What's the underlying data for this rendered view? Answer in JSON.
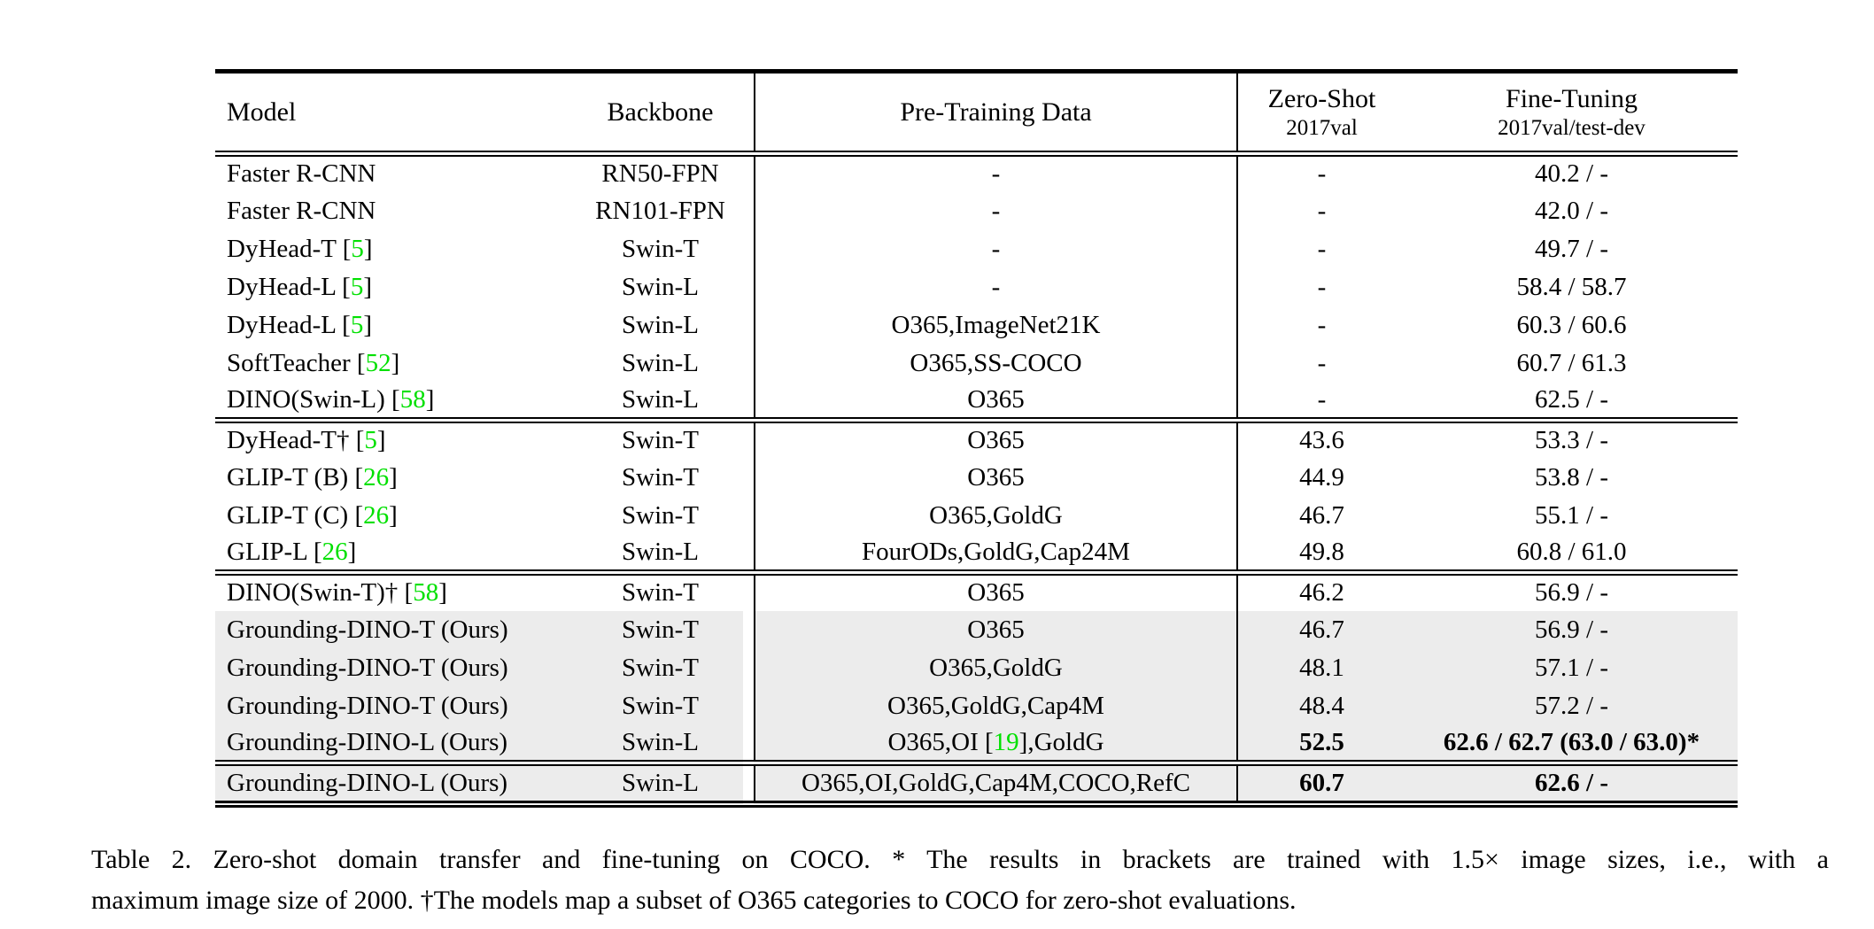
{
  "colors": {
    "green": "#00e000",
    "hl": "#ececec"
  },
  "table": {
    "columns": [
      {
        "label": "Model"
      },
      {
        "label": "Backbone"
      },
      {
        "label": "Pre-Training Data"
      },
      {
        "label": "Zero-Shot",
        "sublabel": "2017val"
      },
      {
        "label": "Fine-Tuning",
        "sublabel": "2017val/test-dev"
      }
    ],
    "sections": [
      {
        "rows": [
          {
            "model": "Faster R-CNN",
            "backbone": "RN50-FPN",
            "pretrain": "-",
            "zero_shot": "-",
            "fine_tuning": "40.2 / -",
            "highlight": false,
            "bold_values": false
          },
          {
            "model": "Faster R-CNN",
            "backbone": "RN101-FPN",
            "pretrain": "-",
            "zero_shot": "-",
            "fine_tuning": "42.0 / -",
            "highlight": false,
            "bold_values": false
          },
          {
            "model": "DyHead-T [5]",
            "backbone": "Swin-T",
            "pretrain": "-",
            "zero_shot": "-",
            "fine_tuning": "49.7 / -",
            "highlight": false,
            "bold_values": false
          },
          {
            "model": "DyHead-L [5]",
            "backbone": "Swin-L",
            "pretrain": "-",
            "zero_shot": "-",
            "fine_tuning": "58.4 / 58.7",
            "highlight": false,
            "bold_values": false
          },
          {
            "model": "DyHead-L [5]",
            "backbone": "Swin-L",
            "pretrain": "O365,ImageNet21K",
            "zero_shot": "-",
            "fine_tuning": "60.3 / 60.6",
            "highlight": false,
            "bold_values": false
          },
          {
            "model": "SoftTeacher [52]",
            "backbone": "Swin-L",
            "pretrain": "O365,SS-COCO",
            "zero_shot": "-",
            "fine_tuning": "60.7 / 61.3",
            "highlight": false,
            "bold_values": false
          },
          {
            "model": "DINO(Swin-L) [58]",
            "backbone": "Swin-L",
            "pretrain": "O365",
            "zero_shot": "-",
            "fine_tuning": "62.5 / -",
            "highlight": false,
            "bold_values": false
          }
        ]
      },
      {
        "rows": [
          {
            "model": "DyHead-T† [5]",
            "backbone": "Swin-T",
            "pretrain": "O365",
            "zero_shot": "43.6",
            "fine_tuning": "53.3 / -",
            "highlight": false,
            "bold_values": false
          },
          {
            "model": "GLIP-T (B) [26]",
            "backbone": "Swin-T",
            "pretrain": "O365",
            "zero_shot": "44.9",
            "fine_tuning": "53.8 / -",
            "highlight": false,
            "bold_values": false
          },
          {
            "model": "GLIP-T (C) [26]",
            "backbone": "Swin-T",
            "pretrain": "O365,GoldG",
            "zero_shot": "46.7",
            "fine_tuning": "55.1 / -",
            "highlight": false,
            "bold_values": false
          },
          {
            "model": "GLIP-L [26]",
            "backbone": "Swin-L",
            "pretrain": "FourODs,GoldG,Cap24M",
            "zero_shot": "49.8",
            "fine_tuning": "60.8 / 61.0",
            "highlight": false,
            "bold_values": false
          }
        ]
      },
      {
        "rows": [
          {
            "model": "DINO(Swin-T)† [58]",
            "backbone": "Swin-T",
            "pretrain": "O365",
            "zero_shot": "46.2",
            "fine_tuning": "56.9 / -",
            "highlight": false,
            "bold_values": false
          },
          {
            "model": "Grounding-DINO-T (Ours)",
            "backbone": "Swin-T",
            "pretrain": "O365",
            "zero_shot": "46.7",
            "fine_tuning": "56.9 / -",
            "highlight": true,
            "bold_values": false
          },
          {
            "model": "Grounding-DINO-T (Ours)",
            "backbone": "Swin-T",
            "pretrain": "O365,GoldG",
            "zero_shot": "48.1",
            "fine_tuning": "57.1 / -",
            "highlight": true,
            "bold_values": false
          },
          {
            "model": "Grounding-DINO-T (Ours)",
            "backbone": "Swin-T",
            "pretrain": "O365,GoldG,Cap4M",
            "zero_shot": "48.4",
            "fine_tuning": "57.2 / -",
            "highlight": true,
            "bold_values": false
          },
          {
            "model": "Grounding-DINO-L (Ours)",
            "backbone": "Swin-L",
            "pretrain": "O365,OI [19],GoldG",
            "zero_shot": "52.5",
            "fine_tuning": "62.6 / 62.7 (63.0 / 63.0)*",
            "highlight": true,
            "bold_values": true
          }
        ]
      },
      {
        "rows": [
          {
            "model": "Grounding-DINO-L (Ours)",
            "backbone": "Swin-L",
            "pretrain": "O365,OI,GoldG,Cap4M,COCO,RefC",
            "zero_shot": "60.7",
            "fine_tuning": "62.6 / -",
            "highlight": true,
            "bold_values": true
          }
        ]
      }
    ]
  },
  "caption": {
    "line1": "Table 2.  Zero-shot domain transfer and fine-tuning on COCO. * The results in brackets are trained with 1.5× image sizes, i.e., with a",
    "line2": "maximum image size of 2000. †The models map a subset of O365 categories to COCO for zero-shot evaluations."
  }
}
